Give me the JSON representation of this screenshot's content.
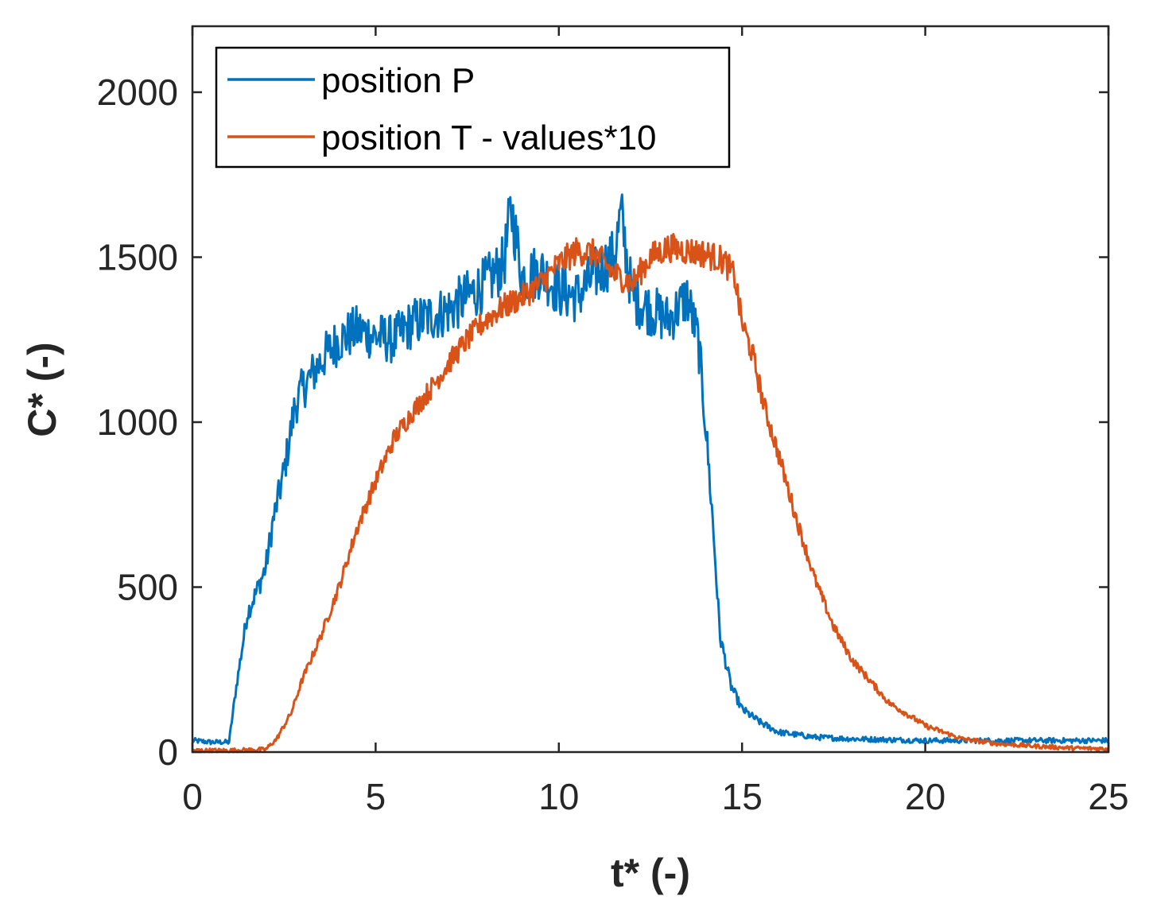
{
  "chart_data": {
    "type": "line",
    "xlabel": "t* (-)",
    "ylabel": "C* (-)",
    "xlim": [
      0,
      25
    ],
    "ylim": [
      0,
      2200
    ],
    "x_ticks": [
      0,
      5,
      10,
      15,
      20,
      25
    ],
    "y_ticks": [
      0,
      500,
      1000,
      1500,
      2000
    ],
    "x_tick_labels": [
      "0",
      "5",
      "10",
      "15",
      "20",
      "25"
    ],
    "y_tick_labels": [
      "0",
      "500",
      "1000",
      "1500",
      "2000"
    ],
    "legend_position": "top-left",
    "grid": false,
    "series": [
      {
        "name": "position P",
        "color": "#0072BD",
        "x": [
          0,
          0.5,
          1.0,
          1.2,
          1.5,
          1.8,
          2.0,
          2.2,
          2.5,
          2.8,
          3.0,
          3.3,
          3.6,
          4.0,
          4.5,
          5.0,
          5.5,
          6.0,
          6.5,
          7.0,
          7.5,
          8.0,
          8.5,
          8.7,
          9.0,
          9.5,
          10.0,
          10.5,
          11.0,
          11.5,
          11.7,
          12.0,
          12.5,
          13.0,
          13.5,
          13.8,
          14.0,
          14.2,
          14.4,
          14.7,
          15.0,
          15.5,
          16.0,
          17.0,
          18.0,
          20.0,
          22.0,
          25.0
        ],
        "y": [
          35,
          30,
          30,
          200,
          420,
          500,
          560,
          700,
          850,
          1050,
          1100,
          1150,
          1200,
          1250,
          1280,
          1260,
          1250,
          1300,
          1320,
          1340,
          1380,
          1420,
          1480,
          1650,
          1440,
          1460,
          1400,
          1380,
          1450,
          1500,
          1630,
          1380,
          1340,
          1310,
          1380,
          1250,
          1000,
          700,
          350,
          200,
          130,
          90,
          60,
          45,
          40,
          35,
          35,
          35
        ]
      },
      {
        "name": "position T - values*10",
        "color": "#D95319",
        "x": [
          0,
          1.0,
          2.0,
          2.3,
          2.7,
          3.0,
          3.5,
          4.0,
          4.5,
          5.0,
          5.5,
          6.0,
          6.5,
          7.0,
          7.5,
          8.0,
          8.5,
          9.0,
          9.5,
          10.0,
          10.5,
          11.0,
          11.5,
          12.0,
          12.5,
          13.0,
          13.5,
          14.0,
          14.5,
          14.8,
          15.0,
          15.3,
          15.6,
          16.0,
          16.5,
          17.0,
          17.5,
          18.0,
          19.0,
          20.0,
          21.0,
          22.0,
          23.0,
          24.0,
          25.0
        ],
        "y": [
          5,
          5,
          8,
          40,
          120,
          220,
          350,
          500,
          680,
          820,
          950,
          1030,
          1100,
          1180,
          1250,
          1310,
          1350,
          1380,
          1420,
          1480,
          1520,
          1510,
          1450,
          1420,
          1500,
          1530,
          1520,
          1510,
          1490,
          1440,
          1300,
          1200,
          1050,
          900,
          700,
          520,
          380,
          280,
          150,
          80,
          40,
          25,
          18,
          12,
          10
        ]
      }
    ]
  }
}
